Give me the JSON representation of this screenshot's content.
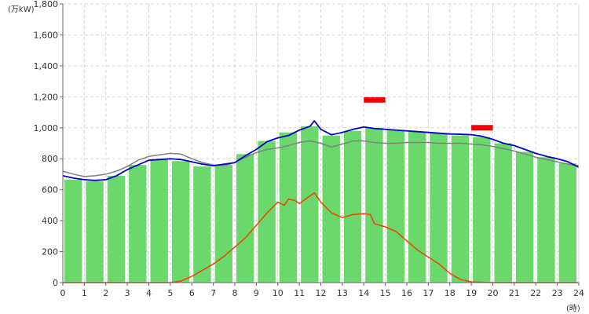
{
  "chart_data": {
    "type": "bar",
    "unit_label": "(万kW)",
    "x_unit_label": "(時)",
    "xlim": [
      0,
      24
    ],
    "ylim": [
      0,
      1800
    ],
    "x_ticks": [
      0,
      1,
      2,
      3,
      4,
      5,
      6,
      7,
      8,
      9,
      10,
      11,
      12,
      13,
      14,
      15,
      16,
      17,
      18,
      19,
      20,
      21,
      22,
      23,
      24
    ],
    "y_ticks": [
      {
        "value": 0,
        "label": "0"
      },
      {
        "value": 200,
        "label": "200"
      },
      {
        "value": 400,
        "label": "400"
      },
      {
        "value": 600,
        "label": "600"
      },
      {
        "value": 800,
        "label": "800"
      },
      {
        "value": 1000,
        "label": "1,000"
      },
      {
        "value": 1200,
        "label": "1,200"
      },
      {
        "value": 1400,
        "label": "1,400"
      },
      {
        "value": 1600,
        "label": "1,600"
      },
      {
        "value": 1800,
        "label": "1,800"
      }
    ],
    "grid": true,
    "colors": {
      "bars": "#6ad86a",
      "blue_line": "#0000cc",
      "gray_line": "#808080",
      "orange_line": "#ee4400",
      "red_marker": "#ee0000",
      "grid": "#d8d8d8",
      "axis": "#666666"
    },
    "bars": {
      "hours": [
        0,
        1,
        2,
        3,
        4,
        5,
        6,
        7,
        8,
        9,
        10,
        11,
        12,
        13,
        14,
        15,
        16,
        17,
        18,
        19,
        20,
        21,
        22,
        23
      ],
      "values": [
        665,
        655,
        690,
        760,
        795,
        785,
        750,
        760,
        830,
        915,
        970,
        1010,
        950,
        980,
        1000,
        985,
        975,
        965,
        950,
        940,
        900,
        845,
        810,
        770
      ]
    },
    "blue_line": {
      "x": [
        0,
        0.5,
        1,
        1.5,
        2,
        2.5,
        3,
        3.5,
        4,
        4.5,
        5,
        5.5,
        6,
        6.5,
        7,
        7.5,
        8,
        8.5,
        9,
        9.5,
        10,
        10.5,
        11,
        11.5,
        11.7,
        12,
        12.5,
        13,
        13.5,
        14,
        14.5,
        15,
        15.5,
        16,
        16.5,
        17,
        17.5,
        18,
        18.5,
        19,
        19.5,
        20,
        20.5,
        21,
        21.5,
        22,
        22.5,
        23,
        23.5,
        24
      ],
      "y": [
        690,
        675,
        665,
        660,
        665,
        690,
        730,
        760,
        790,
        795,
        800,
        795,
        780,
        765,
        755,
        765,
        775,
        820,
        860,
        910,
        935,
        950,
        985,
        1010,
        1045,
        990,
        955,
        970,
        990,
        1005,
        995,
        990,
        985,
        980,
        975,
        970,
        965,
        960,
        958,
        955,
        945,
        925,
        900,
        885,
        860,
        835,
        815,
        800,
        780,
        745
      ]
    },
    "gray_line": {
      "x": [
        0,
        0.5,
        1,
        1.5,
        2,
        2.5,
        3,
        3.5,
        4,
        4.5,
        5,
        5.5,
        6,
        6.5,
        7,
        7.5,
        8,
        8.5,
        9,
        9.5,
        10,
        10.5,
        11,
        11.5,
        12,
        12.5,
        13,
        13.5,
        14,
        14.5,
        15,
        15.5,
        16,
        16.5,
        17,
        17.5,
        18,
        18.5,
        19,
        19.5,
        20,
        20.5,
        21,
        21.5,
        22,
        22.5,
        23,
        23.5,
        24
      ],
      "y": [
        720,
        700,
        685,
        690,
        700,
        720,
        750,
        790,
        815,
        825,
        835,
        830,
        800,
        775,
        760,
        755,
        775,
        810,
        840,
        860,
        870,
        885,
        905,
        915,
        900,
        875,
        895,
        915,
        915,
        905,
        900,
        900,
        905,
        905,
        905,
        900,
        900,
        900,
        895,
        890,
        880,
        865,
        850,
        830,
        810,
        795,
        780,
        765,
        755
      ]
    },
    "orange_line": {
      "x": [
        0,
        1,
        2,
        3,
        4,
        5,
        5.5,
        6,
        6.5,
        7,
        7.5,
        8,
        8.5,
        9,
        9.5,
        10,
        10.3,
        10.5,
        10.8,
        11,
        11.5,
        11.7,
        12,
        12.5,
        13,
        13.5,
        14,
        14.3,
        14.5,
        15,
        15.5,
        16,
        16.5,
        17,
        17.5,
        18,
        18.5,
        19,
        20,
        21,
        22,
        23,
        24
      ],
      "y": [
        0,
        0,
        0,
        0,
        0,
        0,
        10,
        40,
        80,
        120,
        170,
        230,
        290,
        370,
        450,
        520,
        500,
        540,
        530,
        510,
        560,
        580,
        520,
        450,
        420,
        440,
        445,
        440,
        380,
        360,
        330,
        270,
        210,
        165,
        120,
        60,
        20,
        5,
        0,
        0,
        0,
        0,
        0
      ]
    },
    "red_markers": [
      {
        "x_start": 14,
        "x_end": 15,
        "y": 1180
      },
      {
        "x_start": 19,
        "x_end": 20,
        "y": 1000
      }
    ]
  }
}
